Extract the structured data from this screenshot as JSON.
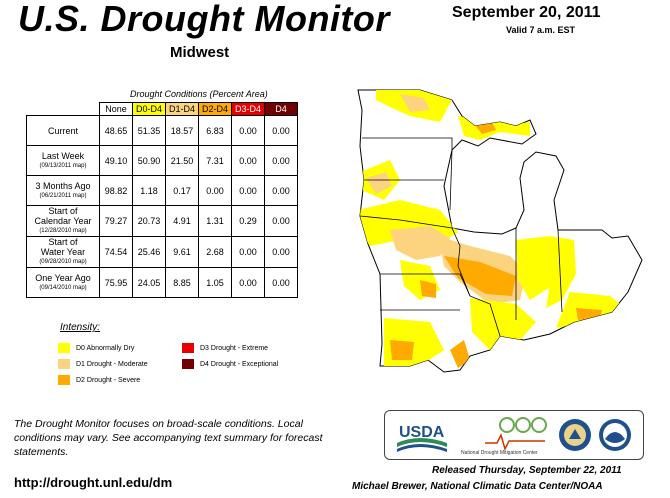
{
  "header": {
    "title": "U.S. Drought Monitor",
    "region": "Midwest",
    "date": "September 20, 2011",
    "valid": "Valid 7 a.m. EST"
  },
  "table": {
    "caption": "Drought Conditions (Percent Area)",
    "columns": [
      "None",
      "D0-D4",
      "D1-D4",
      "D2-D4",
      "D3-D4",
      "D4"
    ],
    "rows": [
      {
        "label": "Current",
        "sub": "",
        "values": [
          "48.65",
          "51.35",
          "18.57",
          "6.83",
          "0.00",
          "0.00"
        ]
      },
      {
        "label": "Last Week",
        "sub": "(09/13/2011 map)",
        "values": [
          "49.10",
          "50.90",
          "21.50",
          "7.31",
          "0.00",
          "0.00"
        ]
      },
      {
        "label": "3 Months Ago",
        "sub": "(06/21/2011 map)",
        "values": [
          "98.82",
          "1.18",
          "0.17",
          "0.00",
          "0.00",
          "0.00"
        ]
      },
      {
        "label": "Start of\nCalendar Year",
        "sub": "(12/28/2010 map)",
        "values": [
          "79.27",
          "20.73",
          "4.91",
          "1.31",
          "0.29",
          "0.00"
        ]
      },
      {
        "label": "Start of\nWater Year",
        "sub": "(09/28/2010 map)",
        "values": [
          "74.54",
          "25.46",
          "9.61",
          "2.68",
          "0.00",
          "0.00"
        ]
      },
      {
        "label": "One Year Ago",
        "sub": "(09/14/2010 map)",
        "values": [
          "75.95",
          "24.05",
          "8.85",
          "1.05",
          "0.00",
          "0.00"
        ]
      }
    ]
  },
  "legend": {
    "title": "Intensity:",
    "items": [
      {
        "label": "D0 Abnormally Dry",
        "color": "#ffff00"
      },
      {
        "label": "D1 Drought - Moderate",
        "color": "#fcd37f"
      },
      {
        "label": "D2 Drought - Severe",
        "color": "#ffaa00"
      },
      {
        "label": "D3 Drought - Extreme",
        "color": "#e60000"
      },
      {
        "label": "D4 Drought - Exceptional",
        "color": "#730000"
      }
    ]
  },
  "footer": {
    "note": "The Drought Monitor focuses on broad-scale conditions. Local conditions may vary. See accompanying text summary for forecast statements.",
    "url": "http://drought.unl.edu/dm",
    "released": "Released Thursday, September 22, 2011",
    "author": "Michael Brewer, National Climatic Data Center/NOAA"
  },
  "logos": {
    "usda": "USDA",
    "ndmc": "National Drought Mitigation Center"
  }
}
